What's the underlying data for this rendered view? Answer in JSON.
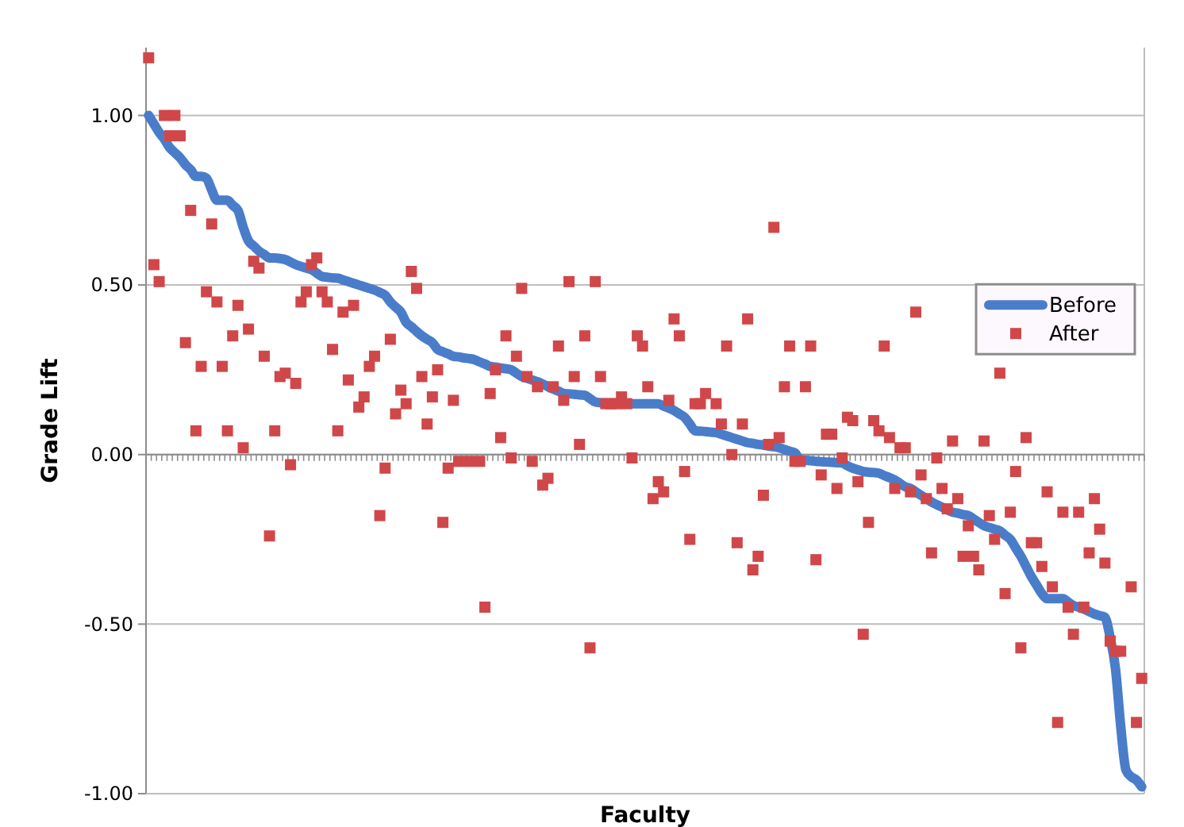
{
  "chart_data": {
    "type": "line",
    "xlabel": "Faculty",
    "ylabel": "Grade Lift",
    "categories": [
      null,
      null,
      null,
      null,
      null,
      null,
      null,
      null,
      null,
      null,
      null,
      null,
      null,
      null,
      null,
      null,
      null,
      null,
      null,
      null,
      null,
      null,
      null,
      null,
      null,
      null,
      null,
      null,
      null,
      null,
      null,
      null,
      null,
      null,
      null,
      null,
      null,
      null,
      null,
      null,
      null,
      null,
      null,
      null,
      null,
      null,
      null,
      null,
      null,
      null,
      null,
      null,
      null,
      null,
      null,
      null,
      null,
      null,
      null,
      null,
      null,
      null,
      null,
      null,
      null,
      null,
      null,
      null,
      null,
      null,
      null,
      null,
      null,
      null,
      null,
      null,
      null,
      null,
      null,
      null,
      null,
      null,
      null,
      null,
      null,
      null,
      null,
      null,
      null,
      null,
      null,
      null,
      null,
      null,
      null,
      null,
      null,
      null,
      null,
      null,
      null,
      null,
      null,
      null,
      null,
      null,
      null,
      null,
      null,
      null,
      null,
      null,
      null,
      null,
      null,
      null,
      null,
      null,
      null,
      null,
      null,
      null,
      null,
      null,
      null,
      null,
      null,
      null,
      null,
      null,
      null,
      null,
      null,
      null,
      null,
      null,
      null,
      null,
      null,
      null,
      null,
      null,
      null,
      null,
      null,
      null,
      null,
      null,
      null,
      null,
      null,
      null,
      null,
      null,
      null,
      null,
      null,
      null,
      null,
      null,
      null,
      null,
      null,
      null,
      null,
      null,
      null,
      null,
      null,
      null,
      null,
      null,
      null,
      null,
      null,
      null,
      null,
      null,
      null,
      null,
      null,
      null,
      null,
      null,
      null,
      null,
      null,
      null,
      null,
      null
    ],
    "series": [
      {
        "name": "Before",
        "color": "#4a7dc9",
        "marker": "none",
        "values": [
          1.0,
          0.975,
          0.95,
          0.93,
          0.905,
          0.89,
          0.875,
          0.855,
          0.84,
          0.82,
          0.82,
          0.815,
          0.78,
          0.75,
          0.75,
          0.75,
          0.735,
          0.72,
          0.67,
          0.63,
          0.615,
          0.6,
          0.59,
          0.58,
          0.58,
          0.578,
          0.575,
          0.568,
          0.56,
          0.555,
          0.55,
          0.545,
          0.535,
          0.525,
          0.523,
          0.521,
          0.52,
          0.515,
          0.51,
          0.505,
          0.5,
          0.495,
          0.49,
          0.485,
          0.478,
          0.47,
          0.45,
          0.435,
          0.42,
          0.39,
          0.377,
          0.363,
          0.35,
          0.34,
          0.33,
          0.31,
          0.303,
          0.297,
          0.29,
          0.288,
          0.285,
          0.283,
          0.28,
          0.273,
          0.267,
          0.26,
          0.258,
          0.255,
          0.253,
          0.25,
          0.24,
          0.23,
          0.225,
          0.22,
          0.215,
          0.208,
          0.2,
          0.193,
          0.187,
          0.18,
          0.179,
          0.178,
          0.176,
          0.175,
          0.165,
          0.155,
          0.153,
          0.152,
          0.15,
          0.15,
          0.15,
          0.15,
          0.15,
          0.15,
          0.15,
          0.15,
          0.15,
          0.15,
          0.143,
          0.137,
          0.13,
          0.12,
          0.11,
          0.09,
          0.07,
          0.069,
          0.068,
          0.066,
          0.065,
          0.06,
          0.055,
          0.05,
          0.045,
          0.04,
          0.035,
          0.033,
          0.03,
          0.028,
          0.025,
          0.023,
          0.02,
          0.015,
          0.01,
          0.005,
          -0.015,
          -0.017,
          -0.018,
          -0.02,
          -0.021,
          -0.022,
          -0.023,
          -0.024,
          -0.025,
          -0.033,
          -0.04,
          -0.045,
          -0.05,
          -0.052,
          -0.053,
          -0.055,
          -0.062,
          -0.068,
          -0.075,
          -0.085,
          -0.095,
          -0.1,
          -0.11,
          -0.12,
          -0.13,
          -0.14,
          -0.148,
          -0.155,
          -0.163,
          -0.17,
          -0.173,
          -0.177,
          -0.18,
          -0.19,
          -0.2,
          -0.21,
          -0.215,
          -0.22,
          -0.225,
          -0.238,
          -0.25,
          -0.275,
          -0.3,
          -0.33,
          -0.36,
          -0.385,
          -0.41,
          -0.425,
          -0.425,
          -0.425,
          -0.425,
          -0.435,
          -0.445,
          -0.45,
          -0.456,
          -0.463,
          -0.47,
          -0.475,
          -0.48,
          -0.54,
          -0.63,
          -0.8,
          -0.93,
          -0.95,
          -0.96,
          -0.98
        ]
      },
      {
        "name": "After",
        "type": "scatter",
        "color": "#d0474a",
        "marker": "square",
        "values": [
          1.17,
          0.56,
          0.51,
          1.0,
          0.94,
          1.0,
          0.94,
          0.33,
          0.72,
          0.07,
          0.26,
          0.48,
          0.68,
          0.45,
          0.26,
          0.07,
          0.35,
          0.44,
          0.02,
          0.37,
          0.57,
          0.55,
          0.29,
          -0.24,
          0.07,
          0.23,
          0.24,
          -0.03,
          0.21,
          0.45,
          0.48,
          0.56,
          0.58,
          0.48,
          0.45,
          0.31,
          0.07,
          0.42,
          0.22,
          0.44,
          0.14,
          0.17,
          0.26,
          0.29,
          -0.18,
          -0.04,
          0.34,
          0.12,
          0.19,
          0.15,
          0.54,
          0.49,
          0.23,
          0.09,
          0.17,
          0.25,
          -0.2,
          -0.04,
          0.16,
          -0.02,
          null,
          -0.02,
          null,
          -0.02,
          -0.45,
          0.18,
          0.25,
          0.05,
          0.35,
          -0.01,
          0.29,
          0.49,
          0.23,
          -0.02,
          0.2,
          -0.09,
          -0.07,
          0.2,
          0.32,
          0.16,
          0.51,
          0.23,
          0.03,
          0.35,
          -0.57,
          0.51,
          0.23,
          0.15,
          0.15,
          0.15,
          0.17,
          0.15,
          -0.01,
          0.35,
          0.32,
          0.2,
          -0.13,
          -0.08,
          -0.11,
          0.16,
          0.4,
          0.35,
          -0.05,
          -0.25,
          0.15,
          0.15,
          0.18,
          null,
          0.15,
          0.09,
          0.32,
          0.0,
          -0.26,
          0.09,
          0.4,
          -0.34,
          -0.3,
          -0.12,
          0.03,
          0.67,
          0.05,
          0.2,
          0.32,
          -0.02,
          -0.02,
          0.2,
          0.32,
          -0.31,
          -0.06,
          0.06,
          0.06,
          -0.1,
          -0.01,
          0.11,
          0.1,
          -0.08,
          -0.53,
          -0.2,
          0.1,
          0.07,
          0.32,
          0.05,
          -0.1,
          0.02,
          0.02,
          -0.11,
          0.42,
          -0.06,
          -0.13,
          -0.29,
          -0.01,
          -0.1,
          -0.16,
          0.04,
          -0.13,
          -0.3,
          -0.21,
          -0.3,
          -0.34,
          0.04,
          -0.18,
          -0.25,
          0.24,
          -0.41,
          -0.17,
          -0.05,
          -0.57,
          0.05,
          -0.26,
          -0.26,
          -0.33,
          -0.11,
          -0.39,
          -0.79,
          -0.17,
          -0.45,
          -0.53,
          -0.17,
          -0.45,
          -0.29,
          -0.13,
          -0.22,
          -0.32,
          -0.55,
          -0.58,
          -0.58,
          null,
          -0.39,
          -0.79,
          -0.66
        ]
      }
    ],
    "ylim": [
      -1.0,
      1.2
    ],
    "yticks": [
      {
        "value": -1,
        "label": "-1.00"
      },
      {
        "value": -0.5,
        "label": "-0.50"
      },
      {
        "value": 0,
        "label": "0.00"
      },
      {
        "value": 0.5,
        "label": "0.50"
      },
      {
        "value": 1,
        "label": "1.00"
      }
    ],
    "grid": "y",
    "legend": "right",
    "tick_labels": "y"
  }
}
